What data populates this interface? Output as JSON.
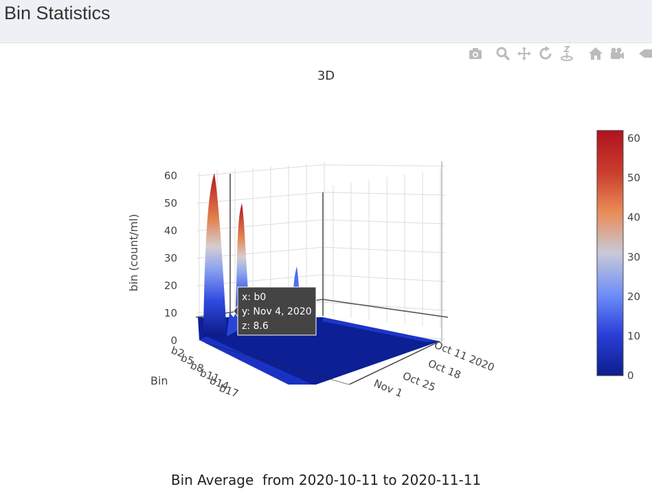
{
  "header": {
    "title": "Bin Statistics"
  },
  "modebar": {
    "buttons": [
      {
        "name": "camera-icon",
        "title": "Download plot as a png"
      },
      {
        "name": "zoom-icon",
        "title": "Zoom"
      },
      {
        "name": "pan-icon",
        "title": "Pan"
      },
      {
        "name": "orbit-rotation-icon",
        "title": "Orbital rotation"
      },
      {
        "name": "turntable-rotation-icon",
        "title": "Turntable rotation"
      },
      {
        "name": "home-icon",
        "title": "Reset camera to default"
      },
      {
        "name": "camera-view-icon",
        "title": "Reset camera to last save"
      },
      {
        "name": "plotly-logo-icon",
        "title": "Produced with Plotly"
      }
    ]
  },
  "chart_data": {
    "type": "surface",
    "title": "3D",
    "zlabel": "bin (count/ml)",
    "xlabel": "Bin",
    "x_tick_labels": [
      "b2",
      "b5",
      "b8",
      "b11",
      "b14",
      "b17"
    ],
    "y_tick_labels": [
      "Oct 11 2020",
      "Oct 18",
      "Oct 25",
      "Nov 1"
    ],
    "z_tick_labels": [
      "0",
      "10",
      "20",
      "30",
      "40",
      "50",
      "60"
    ],
    "zlim": [
      0,
      62
    ],
    "peaks": [
      {
        "x": "b0",
        "z": 61
      },
      {
        "x": "b2",
        "z": 50
      },
      {
        "x": "b4",
        "z": 27
      }
    ],
    "colorscale": [
      "#0d1d8e",
      "#2a3fd8",
      "#6e8ef7",
      "#c9c9d8",
      "#ea8a55",
      "#c93d2d",
      "#b0121f"
    ],
    "colorbar": {
      "range": [
        0,
        62
      ],
      "tick_labels": [
        "0",
        "10",
        "20",
        "30",
        "40",
        "50",
        "60"
      ]
    },
    "hover": {
      "x": "x: b0",
      "y": "y: Nov 4, 2020",
      "z": "z: 8.6"
    }
  },
  "footer": {
    "label": "Bin Average  from 2020-10-11 to 2020-11-11"
  }
}
